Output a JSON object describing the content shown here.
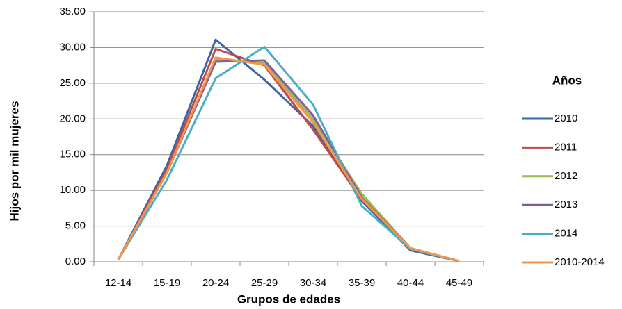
{
  "chart_data": {
    "type": "line",
    "x_label": "Grupos de edades",
    "y_label": "Hijos por mil mujeres",
    "legend_title": "Años",
    "categories": [
      "12-14",
      "15-19",
      "20-24",
      "25-29",
      "30-34",
      "35-39",
      "40-44",
      "45-49"
    ],
    "series": [
      {
        "name": "2010",
        "color": "#3a65a5",
        "values": [
          0.3,
          13.5,
          31.1,
          25.5,
          19.0,
          8.5,
          1.6,
          0.1
        ]
      },
      {
        "name": "2011",
        "color": "#be4b48",
        "values": [
          0.3,
          13.0,
          29.8,
          27.5,
          18.5,
          8.7,
          1.9,
          0.1
        ]
      },
      {
        "name": "2012",
        "color": "#98b954",
        "values": [
          0.3,
          12.5,
          28.3,
          27.8,
          20.0,
          9.5,
          1.9,
          0.1
        ]
      },
      {
        "name": "2013",
        "color": "#7d5fa0",
        "values": [
          0.3,
          12.5,
          28.0,
          28.2,
          20.5,
          9.0,
          1.9,
          0.1
        ]
      },
      {
        "name": "2014",
        "color": "#4aacc5",
        "values": [
          0.3,
          11.5,
          25.7,
          30.1,
          22.0,
          7.8,
          1.8,
          0.1
        ]
      },
      {
        "name": "2010-2014",
        "color": "#f69545",
        "values": [
          0.3,
          12.5,
          28.6,
          27.6,
          19.5,
          8.8,
          1.9,
          0.1
        ]
      }
    ],
    "ylim": [
      0,
      35
    ],
    "yticks": [
      {
        "value": 0,
        "label": "0.00"
      },
      {
        "value": 5,
        "label": "5.00"
      },
      {
        "value": 10,
        "label": "10.00"
      },
      {
        "value": 15,
        "label": "15.00"
      },
      {
        "value": 20,
        "label": "20.00"
      },
      {
        "value": 25,
        "label": "25.00"
      },
      {
        "value": 30,
        "label": "30.00"
      },
      {
        "value": 35,
        "label": "35.00"
      }
    ],
    "grid": true,
    "legend": "right"
  }
}
